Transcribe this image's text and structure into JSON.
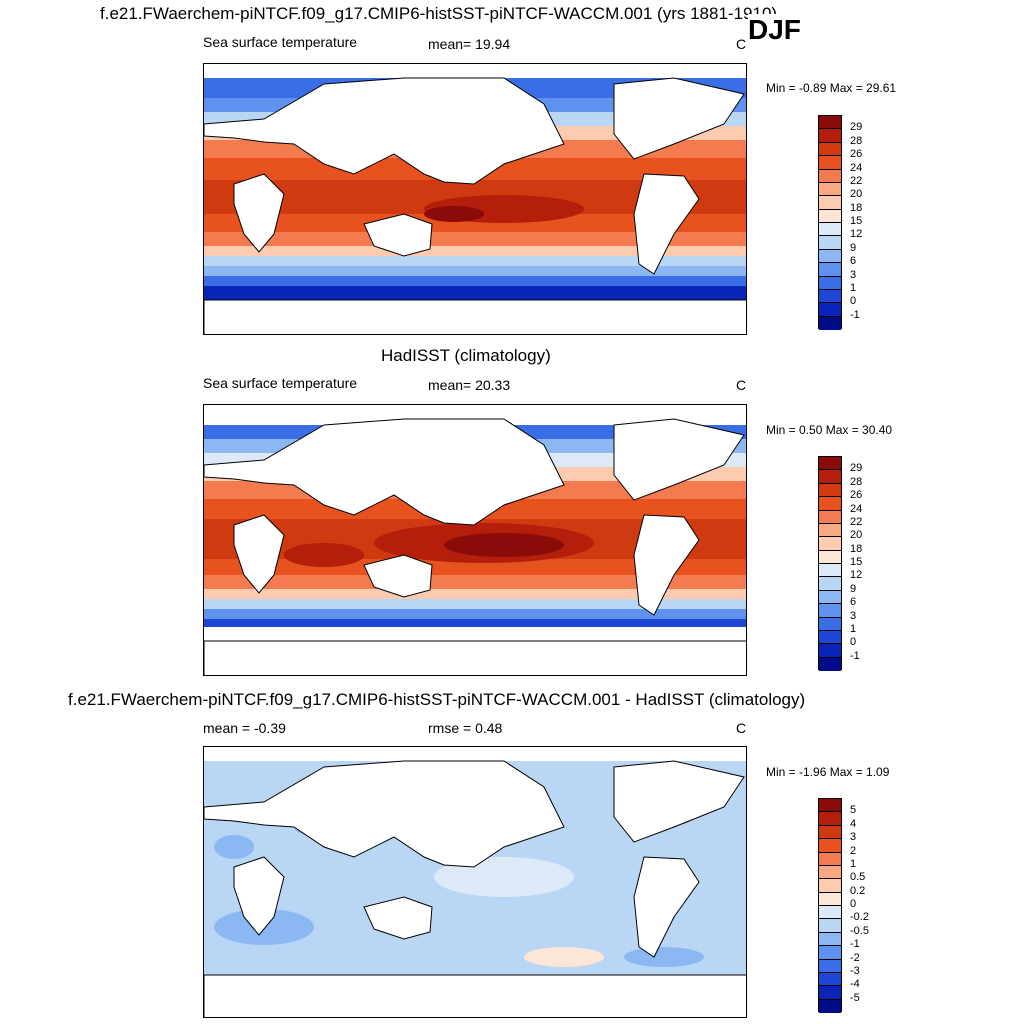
{
  "title_top": "f.e21.FWaerchem-piNTCF.f09_g17.CMIP6-histSST-piNTCF-WACCM.001 (yrs 1881-1910)",
  "season": "DJF",
  "panels": [
    {
      "variable": "Sea surface temperature",
      "mean_text": "mean=  19.94",
      "units": "C",
      "minmax_text": "Min =  -0.89 Max =  29.61",
      "colorbar": {
        "levels": [
          "29",
          "28",
          "26",
          "24",
          "22",
          "20",
          "18",
          "15",
          "12",
          "9",
          "6",
          "3",
          "1",
          "0",
          "-1"
        ],
        "colors": [
          "#8b0a0a",
          "#b41e0a",
          "#d03a10",
          "#e8521f",
          "#f47a50",
          "#f9a882",
          "#fccbb0",
          "#fde6d8",
          "#dceaf7",
          "#b9d6f5",
          "#8bb8f2",
          "#5f92ef",
          "#3a6ee6",
          "#1f47d6",
          "#0a24b8",
          "#000b8a"
        ]
      }
    },
    {
      "title": "HadISST (climatology)",
      "variable": "Sea surface temperature",
      "mean_text": "mean=  20.33",
      "units": "C",
      "minmax_text": "Min =   0.50 Max =  30.40",
      "colorbar": {
        "levels": [
          "29",
          "28",
          "26",
          "24",
          "22",
          "20",
          "18",
          "15",
          "12",
          "9",
          "6",
          "3",
          "1",
          "0",
          "-1"
        ],
        "colors": [
          "#8b0a0a",
          "#b41e0a",
          "#d03a10",
          "#e8521f",
          "#f47a50",
          "#f9a882",
          "#fccbb0",
          "#fde6d8",
          "#dceaf7",
          "#b9d6f5",
          "#8bb8f2",
          "#5f92ef",
          "#3a6ee6",
          "#1f47d6",
          "#0a24b8",
          "#000b8a"
        ]
      }
    },
    {
      "title": "f.e21.FWaerchem-piNTCF.f09_g17.CMIP6-histSST-piNTCF-WACCM.001 - HadISST (climatology)",
      "mean_text": "mean =  -0.39",
      "rmse_text": "rmse =   0.48",
      "units": "C",
      "minmax_text": "Min =  -1.96 Max =   1.09",
      "colorbar": {
        "levels": [
          "5",
          "4",
          "3",
          "2",
          "1",
          "0.5",
          "0.2",
          "0",
          "-0.2",
          "-0.5",
          "-1",
          "-2",
          "-3",
          "-4",
          "-5"
        ],
        "colors": [
          "#8b0a0a",
          "#b41e0a",
          "#d03a10",
          "#e8521f",
          "#f47a50",
          "#f9a882",
          "#fccbb0",
          "#fde6d8",
          "#dceaf7",
          "#b9d6f5",
          "#8bb8f2",
          "#5f92ef",
          "#3a6ee6",
          "#1f47d6",
          "#0a24b8",
          "#000b8a"
        ]
      }
    }
  ]
}
